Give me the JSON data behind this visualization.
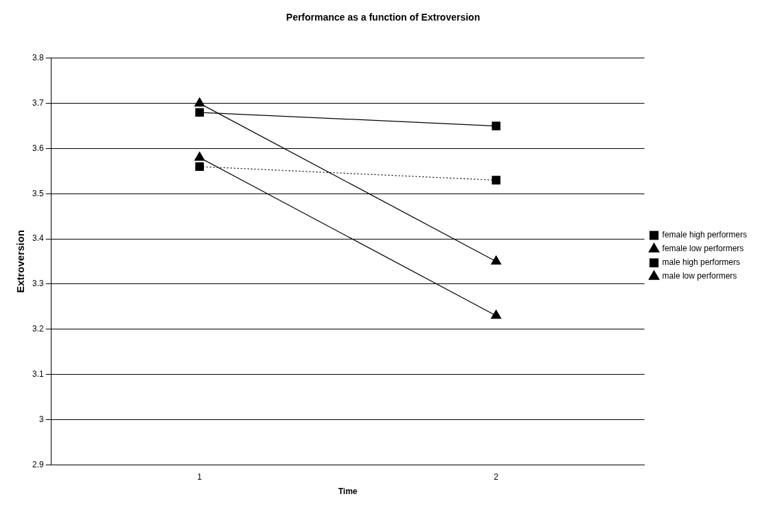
{
  "chart_data": {
    "type": "line",
    "title": "Performance as a function of Extroversion",
    "xlabel": "Time",
    "ylabel": "Extroversion",
    "categories": [
      "1",
      "2"
    ],
    "series": [
      {
        "name": "female high performers",
        "color": "#000000",
        "values": [
          3.68,
          3.65
        ],
        "marker": "square",
        "line_style": "solid"
      },
      {
        "name": "female low performers",
        "color": "#000000",
        "values": [
          3.7,
          3.35
        ],
        "marker": "triangle",
        "line_style": "solid"
      },
      {
        "name": "male high performers",
        "color": "#000000",
        "values": [
          3.56,
          3.53
        ],
        "marker": "square",
        "line_style": "dotted"
      },
      {
        "name": "male low performers",
        "color": "#000000",
        "values": [
          3.58,
          3.23
        ],
        "marker": "triangle",
        "line_style": "solid"
      }
    ],
    "ylim": [
      2.9,
      3.8
    ],
    "yticks": [
      2.9,
      3,
      3.1,
      3.2,
      3.3,
      3.4,
      3.5,
      3.6,
      3.7,
      3.8
    ],
    "grid": "y",
    "legend": "right"
  }
}
